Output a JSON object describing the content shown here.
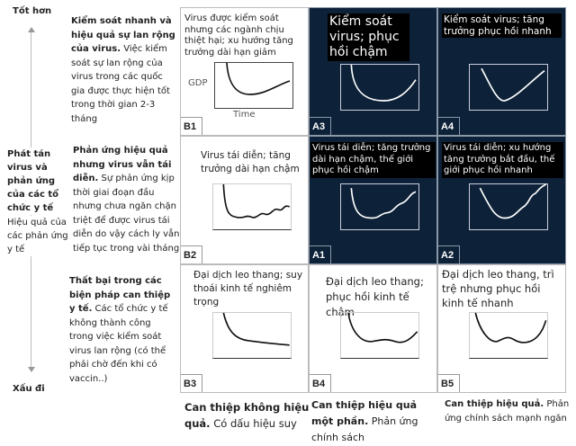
{
  "axis": {
    "top": "Tốt hơn",
    "bottom": "Xấu đi",
    "middle_title": "Phát tán virus và phản ứng của các tổ chức y tế",
    "middle_sub": "Hiệu quả của các phản ứng y tế"
  },
  "rows": [
    {
      "bold": "Kiểm soát nhanh và hiệu quả sự lan rộng của virus.",
      "text": " Việc kiểm soát sự lan rộng của virus trong các quốc gia được thực hiện tốt trong thời gian 2-3 tháng"
    },
    {
      "bold": "Phản ứng hiệu quả nhưng virus vẫn tái diễn.",
      "text": " Sự phản ứng kịp thời giai đoạn đầu nhưng chưa ngăn chặn triệt để được virus tái diễn do vậy cách ly vẫn tiếp tục trong vài tháng"
    },
    {
      "bold": "Thất bại trong các biện pháp can thiệp y tế.",
      "text": " Các tổ chức y tế không thành công trong việc kiểm soát virus lan rộng (có thể phải chờ đến khi có vaccin..)"
    }
  ],
  "cells": [
    {
      "code": "B1",
      "text": "Virus được kiểm soát nhưng các ngành chịu thiệt hại; xu hướng tăng trưởng dài hạn giảm",
      "ylabel": "GDP",
      "xlabel": "Time"
    },
    {
      "code": "A3",
      "text": "Kiểm soát virus; phục hồi chậm"
    },
    {
      "code": "A4",
      "text": "Kiểm soát virus; tăng trưởng phục hồi nhanh"
    },
    {
      "code": "B2",
      "text": "Virus tái diễn; tăng trưởng dài hạn chậm"
    },
    {
      "code": "A1",
      "text": "Virus tái diễn; tăng trưởng dài hạn chậm, thế giới phục hồi chậm"
    },
    {
      "code": "A2",
      "text": "Virus tái diễn; xu hướng tăng trưởng bắt đầu, thế giới phục hồi nhanh"
    },
    {
      "code": "B3",
      "text": "Đại dịch leo thang; suy thoái kinh tế nghiêm trọng"
    },
    {
      "code": "B4",
      "text": "Đại dịch leo thang; phục hồi kinh tế chậm"
    },
    {
      "code": "B5",
      "text": "Đại dịch leo thang, trì trệ nhưng phục hồi kinh tế nhanh"
    }
  ],
  "columns": [
    {
      "bold": "Can thiệp không hiệu quả.",
      "text": " Có dấu hiệu suy"
    },
    {
      "bold": "Can thiệp hiệu quả một phần.",
      "text": " Phản ứng chính sách"
    },
    {
      "bold": "Can thiệp hiệu quả.",
      "text": " Phản ứng chính sách mạnh ngăn"
    }
  ]
}
